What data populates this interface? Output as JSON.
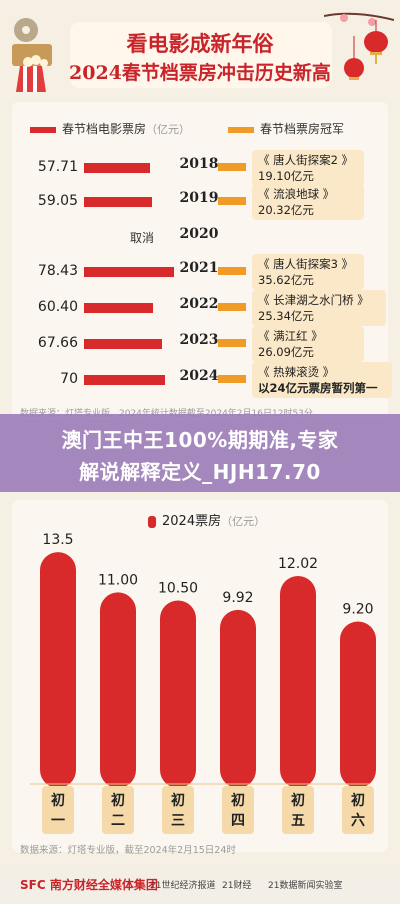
{
  "header": {
    "title_line1": "看电影成新年俗",
    "title_line2": "2024春节档票房冲击历史新高"
  },
  "top_chart": {
    "legend": {
      "total_label": "春节档电影票房",
      "total_unit": "（亿元）",
      "champion_label": "春节档票房冠军",
      "total_color": "#d82a2a",
      "champion_color": "#f09a27"
    },
    "cancel_label": "取消",
    "rows": [
      {
        "year": "2018",
        "value_label": "57.71",
        "film": "《 唐人街探案2 》",
        "gross": "19.10亿元"
      },
      {
        "year": "2019",
        "value_label": "59.05",
        "film": "《 流浪地球 》",
        "gross": "20.32亿元"
      },
      {
        "year": "2020",
        "value_label": "",
        "film": "",
        "gross": ""
      },
      {
        "year": "2021",
        "value_label": "78.43",
        "film": "《 唐人街探案3 》",
        "gross": "35.62亿元"
      },
      {
        "year": "2022",
        "value_label": "60.40",
        "film": "《 长津湖之水门桥 》",
        "gross": "25.34亿元"
      },
      {
        "year": "2023",
        "value_label": "67.66",
        "film": "《 满江红 》",
        "gross": "26.09亿元"
      },
      {
        "year": "2024",
        "value_label": "70",
        "film": "《 热辣滚烫 》",
        "gross": "以24亿元票房暂列第一"
      }
    ],
    "source": "数据来源：灯塔专业版。2024年统计数据截至2024年2月16日12时53分"
  },
  "banner": {
    "line1": "澳门王中王100%期期准,专家",
    "line2": "解说解释定义_HJH17.70"
  },
  "bottom_chart_text": {
    "legend_label": "2024票房",
    "legend_unit": "（亿元）",
    "source": "数据来源：灯塔专业版，截至2024年2月15日24时"
  },
  "chart_data": [
    {
      "type": "bar",
      "orientation": "horizontal",
      "categories": [
        "2018",
        "2019",
        "2020",
        "2021",
        "2022",
        "2023",
        "2024"
      ],
      "series": [
        {
          "name": "春节档电影票房",
          "values": [
            57.71,
            59.05,
            null,
            78.43,
            60.4,
            67.66,
            70
          ]
        }
      ],
      "annotations": [
        "取消"
      ],
      "title": "",
      "xlabel": "",
      "ylabel": ""
    },
    {
      "type": "bar",
      "categories": [
        "初一",
        "初二",
        "初三",
        "初四",
        "初五",
        "初六"
      ],
      "series": [
        {
          "name": "2024票房",
          "values": [
            13.5,
            11.0,
            10.5,
            9.92,
            12.02,
            9.2
          ]
        }
      ],
      "value_labels": [
        "13.5",
        "11.00",
        "10.50",
        "9.92",
        "12.02",
        "9.20"
      ],
      "title": "",
      "xlabel": "",
      "ylabel": "",
      "ylim": [
        0,
        14
      ]
    }
  ],
  "footer": {
    "logo1": "SFC 南方财经全媒体集团",
    "logo2": "21世纪经济报道",
    "logo3": "21财经",
    "logo4": "21数据新闻实验室"
  }
}
